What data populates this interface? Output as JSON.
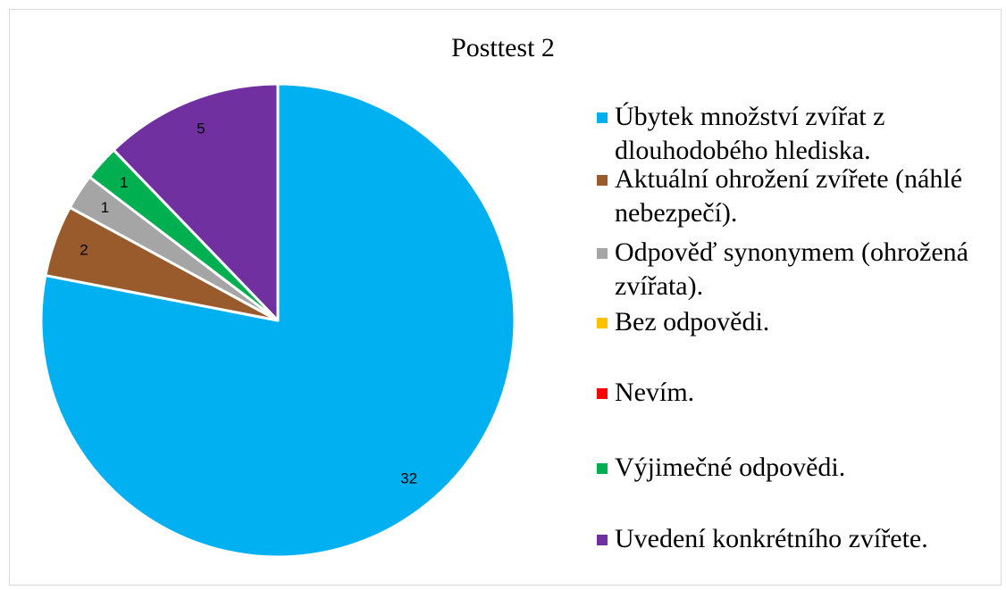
{
  "chart_data": {
    "type": "pie",
    "title": "Posttest 2",
    "categories": [
      "Úbytek množství zvířat z dlouhodobého hlediska.",
      "Aktuální ohrožení zvířete (náhlé nebezpečí).",
      "Odpověď synonymem (ohrožená zvířata).",
      "Bez odpovědi.",
      "Nevím.",
      "Výjimečné odpovědi.",
      "Uvedení konkrétního zvířete."
    ],
    "values": [
      32,
      2,
      1,
      0,
      0,
      1,
      5
    ],
    "colors": [
      "#00b0f0",
      "#9a5b2c",
      "#a5a5a5",
      "#ffc000",
      "#ff0000",
      "#00b050",
      "#7030a0"
    ],
    "legend": "right"
  }
}
